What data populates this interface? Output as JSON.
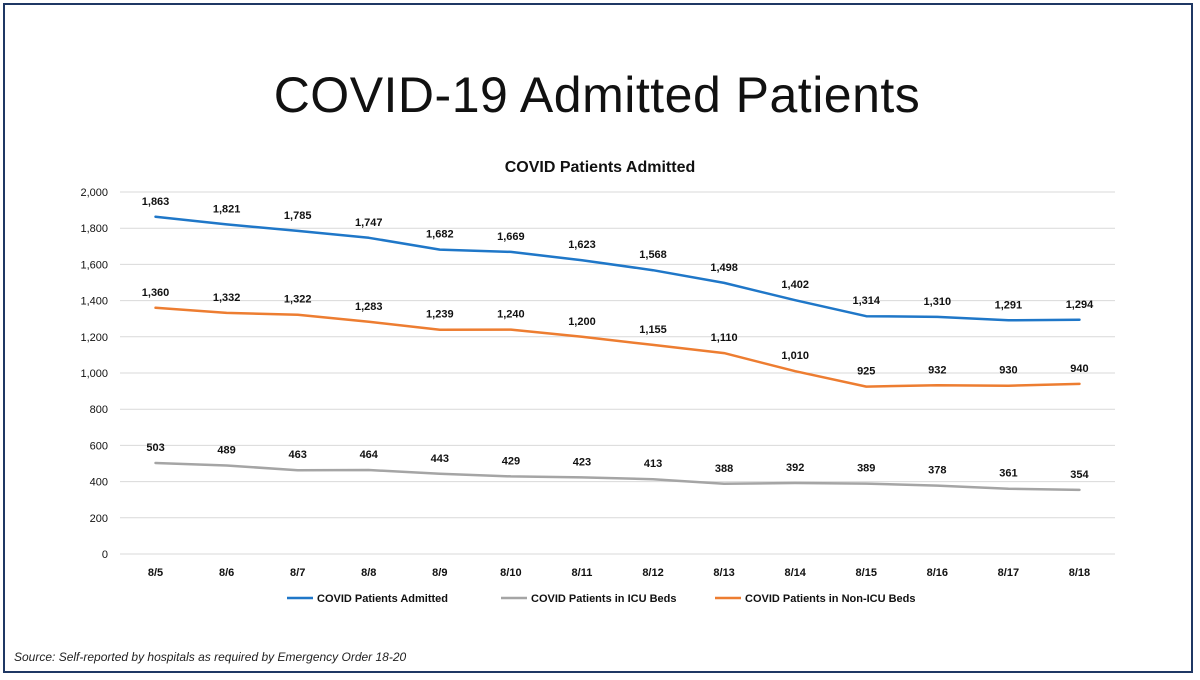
{
  "slide": {
    "title": "COVID-19 Admitted Patients",
    "source": "Source: Self-reported by hospitals as required by Emergency Order 18-20"
  },
  "chart_data": {
    "type": "line",
    "title": "COVID Patients Admitted",
    "xlabel": "",
    "ylabel": "",
    "ylim": [
      0,
      2000
    ],
    "yticks": [
      0,
      200,
      400,
      600,
      800,
      1000,
      1200,
      1400,
      1600,
      1800,
      2000
    ],
    "ytick_labels": [
      "0",
      "200",
      "400",
      "600",
      "800",
      "1,000",
      "1,200",
      "1,400",
      "1,600",
      "1,800",
      "2,000"
    ],
    "grid": true,
    "legend": "bottom",
    "categories": [
      "8/5",
      "8/6",
      "8/7",
      "8/8",
      "8/9",
      "8/10",
      "8/11",
      "8/12",
      "8/13",
      "8/14",
      "8/15",
      "8/16",
      "8/17",
      "8/18"
    ],
    "series": [
      {
        "name": "COVID Patients Admitted",
        "color": "#1f77c8",
        "values": [
          1863,
          1821,
          1785,
          1747,
          1682,
          1669,
          1623,
          1568,
          1498,
          1402,
          1314,
          1310,
          1291,
          1294
        ],
        "labels": [
          "1,863",
          "1,821",
          "1,785",
          "1,747",
          "1,682",
          "1,669",
          "1,623",
          "1,568",
          "1,498",
          "1,402",
          "1,314",
          "1,310",
          "1,291",
          "1,294"
        ]
      },
      {
        "name": "COVID Patients in ICU Beds",
        "color": "#a5a5a5",
        "values": [
          503,
          489,
          463,
          464,
          443,
          429,
          423,
          413,
          388,
          392,
          389,
          378,
          361,
          354
        ],
        "labels": [
          "503",
          "489",
          "463",
          "464",
          "443",
          "429",
          "423",
          "413",
          "388",
          "392",
          "389",
          "378",
          "361",
          "354"
        ]
      },
      {
        "name": "COVID Patients in Non-ICU Beds",
        "color": "#ed7d31",
        "values": [
          1360,
          1332,
          1322,
          1283,
          1239,
          1240,
          1200,
          1155,
          1110,
          1010,
          925,
          932,
          930,
          940
        ],
        "labels": [
          "1,360",
          "1,332",
          "1,322",
          "1,283",
          "1,239",
          "1,240",
          "1,200",
          "1,155",
          "1,110",
          "1,010",
          "925",
          "932",
          "930",
          "940"
        ]
      }
    ]
  }
}
